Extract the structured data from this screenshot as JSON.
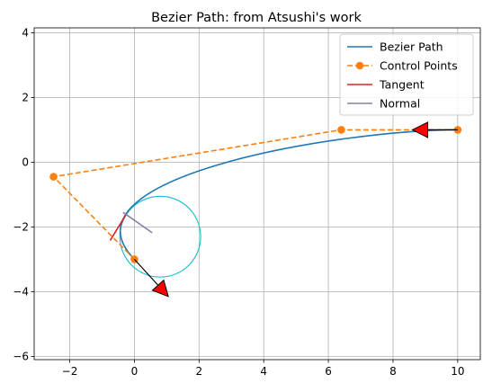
{
  "chart_data": {
    "type": "line",
    "title": "Bezier Path: from Atsushi's work",
    "xlabel": "",
    "ylabel": "",
    "xlim": [
      -3.1,
      10.7
    ],
    "ylim": [
      -6.1,
      4.15
    ],
    "xticks": [
      -2,
      0,
      2,
      4,
      6,
      8,
      10
    ],
    "xtick_labels": [
      "−2",
      "0",
      "2",
      "4",
      "6",
      "8",
      "10"
    ],
    "yticks": [
      -6,
      -4,
      -2,
      0,
      2,
      4
    ],
    "ytick_labels": [
      "−6",
      "−4",
      "−2",
      "0",
      "2",
      "4"
    ],
    "grid": true,
    "legend_position": "top-right",
    "aspect": "equal",
    "series": [
      {
        "name": "Bezier Path",
        "kind": "cubic-bezier-curve",
        "color": "#1f77b4",
        "style": "solid",
        "control_points": [
          [
            0.0,
            -3.0
          ],
          [
            -2.5,
            -0.45
          ],
          [
            6.4,
            1.0
          ],
          [
            10.0,
            1.0
          ]
        ]
      },
      {
        "name": "Control Points",
        "kind": "line-with-markers",
        "color": "#ff7f0e",
        "style": "dashed",
        "marker": "circle",
        "points": [
          [
            0.0,
            -3.0
          ],
          [
            -2.5,
            -0.45
          ],
          [
            6.4,
            1.0
          ],
          [
            10.0,
            1.0
          ]
        ]
      },
      {
        "name": "Tangent",
        "kind": "segment",
        "color": "#d62728",
        "style": "solid",
        "points": [
          [
            -0.75,
            -2.42
          ],
          [
            -0.25,
            -1.6
          ]
        ]
      },
      {
        "name": "Normal",
        "kind": "segment",
        "color": "#8c7fa8",
        "style": "solid",
        "points": [
          [
            -0.35,
            -1.55
          ],
          [
            0.55,
            -2.18
          ]
        ]
      }
    ],
    "annotations": [
      {
        "kind": "circle",
        "color": "#17becf",
        "center": [
          0.8,
          -2.3
        ],
        "radius": 1.25
      },
      {
        "kind": "arrow",
        "color": "#ff0000",
        "edge_color": "#000000",
        "from": [
          0.0,
          -3.0
        ],
        "to": [
          1.05,
          -4.15
        ]
      },
      {
        "kind": "arrow",
        "color": "#ff0000",
        "edge_color": "#000000",
        "from": [
          10.0,
          1.0
        ],
        "to": [
          8.6,
          1.0
        ]
      }
    ]
  }
}
